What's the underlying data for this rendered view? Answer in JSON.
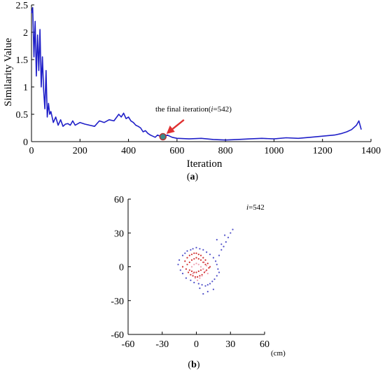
{
  "chart_data": [
    {
      "id": "a",
      "type": "line",
      "xlabel": "Iteration",
      "ylabel": "Similarity Value",
      "xlim": [
        0,
        1400
      ],
      "ylim": [
        0,
        2.5
      ],
      "xticks": [
        "0",
        "200",
        "400",
        "600",
        "800",
        "1000",
        "1200",
        "1400"
      ],
      "yticks": [
        "0",
        "0.5",
        "1",
        "1.5",
        "2",
        "2.5"
      ],
      "grid": false,
      "series": [
        {
          "color": "#1f1fc8",
          "x": [
            0,
            5,
            10,
            15,
            20,
            25,
            30,
            35,
            40,
            45,
            50,
            55,
            60,
            65,
            70,
            75,
            80,
            90,
            100,
            110,
            120,
            130,
            140,
            150,
            160,
            170,
            180,
            200,
            220,
            240,
            260,
            280,
            300,
            320,
            340,
            360,
            370,
            380,
            390,
            400,
            410,
            420,
            430,
            440,
            450,
            460,
            470,
            480,
            490,
            500,
            510,
            520,
            530,
            542,
            560,
            580,
            600,
            650,
            700,
            750,
            800,
            850,
            900,
            950,
            1000,
            1050,
            1100,
            1150,
            1200,
            1250,
            1280,
            1300,
            1320,
            1340,
            1350,
            1355,
            1360
          ],
          "values": [
            2.35,
            2.45,
            1.55,
            2.2,
            1.2,
            1.95,
            1.3,
            2.05,
            1.0,
            1.55,
            0.95,
            0.6,
            1.3,
            0.45,
            0.7,
            0.5,
            0.55,
            0.35,
            0.45,
            0.3,
            0.4,
            0.28,
            0.32,
            0.33,
            0.3,
            0.38,
            0.3,
            0.35,
            0.32,
            0.3,
            0.28,
            0.38,
            0.35,
            0.4,
            0.38,
            0.5,
            0.45,
            0.52,
            0.42,
            0.45,
            0.38,
            0.35,
            0.3,
            0.28,
            0.25,
            0.18,
            0.2,
            0.15,
            0.12,
            0.1,
            0.08,
            0.12,
            0.1,
            0.09,
            0.12,
            0.08,
            0.06,
            0.05,
            0.06,
            0.04,
            0.03,
            0.04,
            0.05,
            0.06,
            0.05,
            0.07,
            0.06,
            0.08,
            0.1,
            0.12,
            0.15,
            0.18,
            0.22,
            0.3,
            0.38,
            0.3,
            0.22
          ]
        }
      ],
      "annotation": {
        "text_prefix": "the final iteration(",
        "text_italic": "i",
        "text_suffix": "=542)",
        "point_x": 542,
        "point_y": 0.09,
        "arrow_color": "#e03030",
        "point_color": "#3a8a8a"
      },
      "caption_prefix": "(",
      "caption_letter": "a",
      "caption_suffix": ")"
    },
    {
      "id": "b",
      "type": "scatter",
      "xlim": [
        -60,
        60
      ],
      "ylim": [
        -60,
        60
      ],
      "xticks": [
        "-60",
        "-30",
        "0",
        "30",
        "60"
      ],
      "yticks": [
        "60",
        "30",
        "0",
        "-30",
        "-60"
      ],
      "xunit": "(cm)",
      "label_italic": "i",
      "label_suffix": "=542",
      "grid": false,
      "series": [
        {
          "color": "#5050c8",
          "x": [
            -12,
            -15,
            -10,
            -8,
            -5,
            -3,
            0,
            3,
            6,
            9,
            12,
            15,
            17,
            18,
            19,
            20,
            18,
            16,
            14,
            12,
            10,
            8,
            5,
            2,
            -2,
            -5,
            -9,
            -12,
            -14,
            -16,
            20,
            22,
            24,
            26,
            28,
            30,
            25,
            22,
            18,
            32,
            15,
            10,
            6,
            3
          ],
          "y": [
            10,
            6,
            12,
            14,
            15,
            16,
            17,
            16,
            15,
            13,
            11,
            8,
            5,
            2,
            -2,
            -5,
            -8,
            -11,
            -13,
            -15,
            -16,
            -17,
            -16,
            -15,
            -14,
            -12,
            -10,
            -6,
            -3,
            2,
            10,
            15,
            18,
            22,
            26,
            30,
            28,
            20,
            24,
            33,
            -20,
            -22,
            -24,
            -19
          ]
        },
        {
          "color": "#d03030",
          "x": [
            -10,
            -8,
            -6,
            -4,
            -2,
            0,
            2,
            4,
            6,
            8,
            10,
            12,
            -12,
            -9,
            -7,
            -5,
            -3,
            -1,
            1,
            3,
            5,
            7,
            9,
            11,
            -8,
            -6,
            -4,
            -2,
            0,
            2,
            4,
            6,
            8,
            -6,
            -4,
            -2,
            0,
            2,
            4,
            6
          ],
          "y": [
            5,
            8,
            10,
            11,
            12,
            12,
            11,
            10,
            8,
            6,
            3,
            0,
            0,
            -2,
            -5,
            -7,
            -8,
            -9,
            -9,
            -8,
            -7,
            -5,
            -3,
            -1,
            2,
            4,
            6,
            7,
            8,
            7,
            6,
            4,
            2,
            -3,
            -4,
            -5,
            -5,
            -4,
            -3,
            -2
          ]
        },
        {
          "color": "#f0a0b0",
          "x": [
            -4,
            -2,
            0,
            2,
            4,
            6,
            8,
            10,
            5,
            3,
            1,
            -1,
            -3,
            7,
            9
          ],
          "y": [
            0,
            2,
            3,
            2,
            0,
            -2,
            -4,
            -6,
            -8,
            -10,
            -12,
            -10,
            -6,
            4,
            1
          ]
        }
      ],
      "caption_prefix": "(",
      "caption_letter": "b",
      "caption_suffix": ")"
    }
  ]
}
